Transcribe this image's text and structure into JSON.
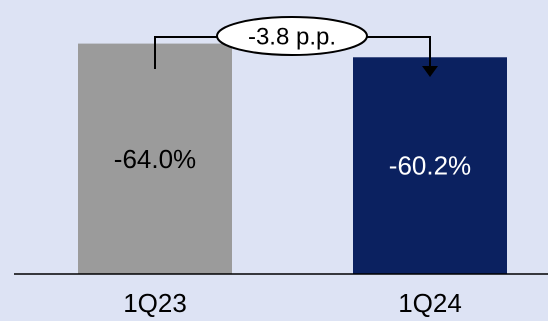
{
  "chart_data": {
    "type": "bar",
    "categories": [
      "1Q23",
      "1Q24"
    ],
    "values": [
      -64.0,
      -60.2
    ],
    "value_labels": [
      "-64.0%",
      "-60.2%"
    ],
    "unit": "%",
    "ylim": [
      -70,
      0
    ],
    "grid": false,
    "legend": "none",
    "bar_colors": [
      "#9b9b9b",
      "#0b2160"
    ],
    "label_colors": [
      "#000000",
      "#ffffff"
    ],
    "background_color": "#dde3f4",
    "annotation": {
      "text": "-3.8 p.p.",
      "from": "1Q23",
      "to": "1Q24"
    }
  }
}
